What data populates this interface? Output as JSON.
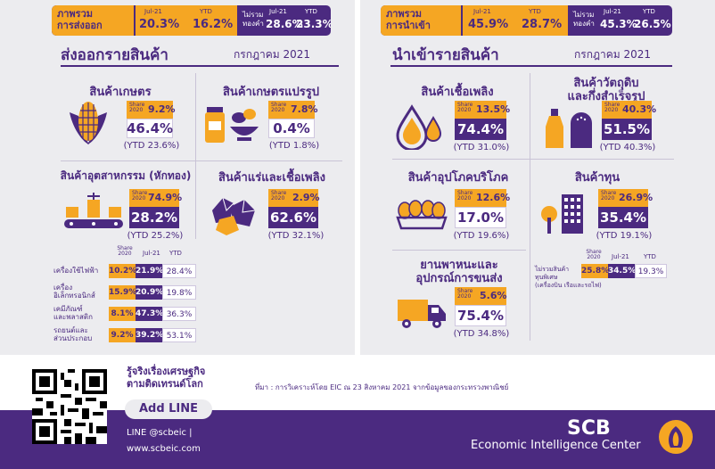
{
  "export": {
    "summary": {
      "label": "ภาพรวม\nการส่งออก",
      "jul_label": "Jul-21",
      "jul_value": "20.3%",
      "ytd_label": "YTD",
      "ytd_value": "16.2%",
      "excl_label": "ไม่รวม\nทองคำ",
      "excl_jul_label": "Jul-21",
      "excl_jul_value": "28.6%",
      "excl_ytd_label": "YTD",
      "excl_ytd_value": "23.3%"
    },
    "title": "ส่งออกรายสินค้า",
    "month": "กรกฎาคม 2021",
    "categories": [
      {
        "name": "สินค้าเกษตร",
        "share_label": "Share\n2020",
        "share": "9.2%",
        "jul": "46.4%",
        "ytd": "(YTD 23.6%)"
      },
      {
        "name": "สินค้าเกษตรแปรรูป",
        "share_label": "Share\n2020",
        "share": "7.8%",
        "jul": "0.4%",
        "ytd": "(YTD 1.8%)"
      },
      {
        "name": "สินค้าอุตสาหกรรม (หักทอง)",
        "share_label": "Share\n2020",
        "share": "74.9%",
        "jul": "28.2%",
        "ytd": "(YTD 25.2%)"
      },
      {
        "name": "สินค้าแร่และเชื้อเพลิง",
        "share_label": "Share\n2020",
        "share": "2.9%",
        "jul": "62.6%",
        "ytd": "(YTD 32.1%)"
      }
    ],
    "subtable": {
      "headers": [
        "Share\n2020",
        "Jul-21",
        "YTD"
      ],
      "rows": [
        {
          "label": "เครื่องใช้ไฟฟ้า",
          "share": "10.2%",
          "jul": "21.9%",
          "ytd": "28.4%"
        },
        {
          "label": "เครื่อง\nอิเล็กทรอนิกส์",
          "share": "15.9%",
          "jul": "20.9%",
          "ytd": "19.8%"
        },
        {
          "label": "เคมีภัณฑ์\nและพลาสติก",
          "share": "8.1%",
          "jul": "47.3%",
          "ytd": "36.3%"
        },
        {
          "label": "รถยนต์และ\nส่วนประกอบ",
          "share": "9.2%",
          "jul": "39.2%",
          "ytd": "53.1%"
        }
      ]
    }
  },
  "import": {
    "summary": {
      "label": "ภาพรวม\nการนำเข้า",
      "jul_label": "Jul-21",
      "jul_value": "45.9%",
      "ytd_label": "YTD",
      "ytd_value": "28.7%",
      "excl_label": "ไม่รวม\nทองคำ",
      "excl_jul_label": "Jul-21",
      "excl_jul_value": "45.3%",
      "excl_ytd_label": "YTD",
      "excl_ytd_value": "26.5%"
    },
    "title": "นำเข้ารายสินค้า",
    "month": "กรกฎาคม 2021",
    "categories": [
      {
        "name": "สินค้าเชื้อเพลิง",
        "share_label": "Share\n2020",
        "share": "13.5%",
        "jul": "74.4%",
        "ytd": "(YTD 31.0%)"
      },
      {
        "name": "สินค้าวัตถุดิบ\nและกึ่งสำเร็จรูป",
        "share_label": "Share\n2020",
        "share": "40.3%",
        "jul": "51.5%",
        "ytd": "(YTD 40.3%)"
      },
      {
        "name": "สินค้าอุปโภคบริโภค",
        "share_label": "Share\n2020",
        "share": "12.6%",
        "jul": "17.0%",
        "ytd": "(YTD 19.6%)"
      },
      {
        "name": "สินค้าทุน",
        "share_label": "Share\n2020",
        "share": "26.9%",
        "jul": "35.4%",
        "ytd": "(YTD 19.1%)"
      },
      {
        "name": "ยานพาหนะและ\nอุปกรณ์การขนส่ง",
        "share_label": "Share\n2020",
        "share": "5.6%",
        "jul": "75.4%",
        "ytd": "(YTD 34.8%)"
      }
    ],
    "capital_excl": {
      "label": "ไม่รวมสินค้า\nทุนพิเศษ\n(เครื่องบิน เรือและรถไฟ)",
      "share": "25.8%",
      "jul": "34.5%",
      "ytd": "19.3%",
      "headers": [
        "Share\n2020",
        "Jul-21",
        "YTD"
      ]
    }
  },
  "footer": {
    "follow_text": "รู้จริงเรื่องเศรษฐกิจ\nตามติดเทรนด์โลก",
    "add_line": "Add LINE",
    "line_id": "LINE @scbeic  |",
    "website": "www.scbeic.com",
    "source": "ที่มา : การวิเคราะห์โดย EIC ณ 23 สิงหาคม 2021 จากข้อมูลของกระทรวงพาณิชย์",
    "brand": "SCB",
    "brand_sub": "Economic Intelligence Center",
    "colors": {
      "purple": "#4b2a80",
      "gold": "#f5a623",
      "panel": "#ececef"
    }
  }
}
